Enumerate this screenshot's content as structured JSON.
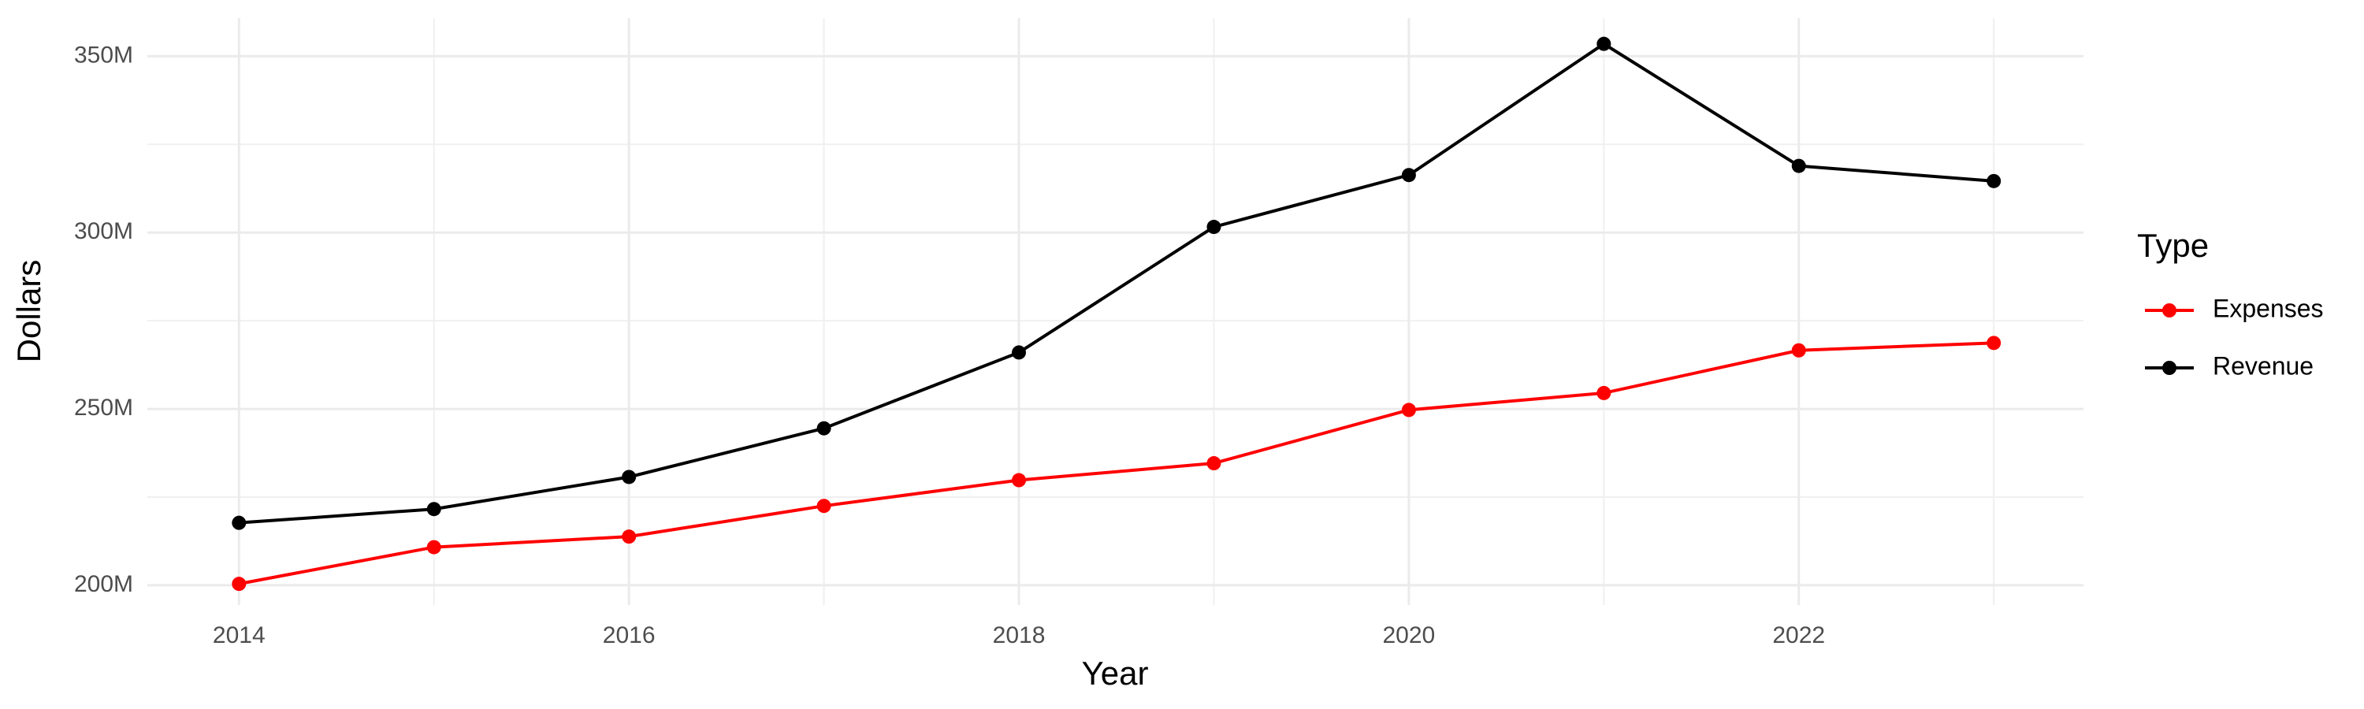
{
  "chart_data": {
    "type": "line",
    "x_label": "Year",
    "y_label": "Dollars",
    "legend_title": "Type",
    "x": [
      2014,
      2015,
      2016,
      2017,
      2018,
      2019,
      2020,
      2021,
      2022,
      2023
    ],
    "series": [
      {
        "name": "Expenses",
        "color": "#ff0000",
        "values": [
          200400000,
          210800000,
          213800000,
          222500000,
          229800000,
          234600000,
          249700000,
          254500000,
          266600000,
          268700000
        ]
      },
      {
        "name": "Revenue",
        "color": "#000000",
        "values": [
          217700000,
          221600000,
          230700000,
          244500000,
          266000000,
          301600000,
          316300000,
          353500000,
          318900000,
          314600000
        ]
      }
    ],
    "xlim": [
      2013.53,
      2023.46
    ],
    "xticks": [
      2014,
      2016,
      2018,
      2020,
      2022
    ],
    "ylim": [
      194400000,
      360800000
    ],
    "yticks": [
      {
        "value": 200000000,
        "label": "200M"
      },
      {
        "value": 250000000,
        "label": "250M"
      },
      {
        "value": 300000000,
        "label": "300M"
      },
      {
        "value": 350000000,
        "label": "350M"
      }
    ],
    "grid": true,
    "legend": "right"
  }
}
